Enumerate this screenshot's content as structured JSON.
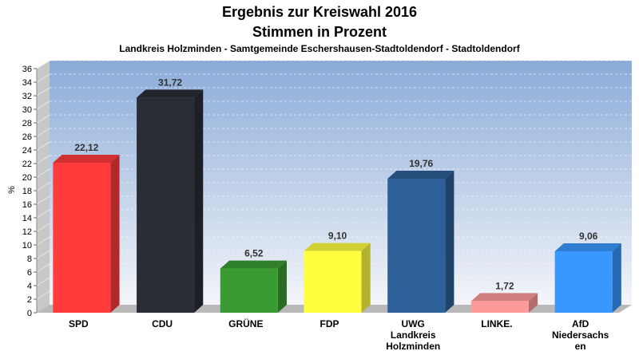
{
  "chart_data": {
    "type": "bar",
    "title": "Ergebnis zur Kreiswahl 2016",
    "title2": "Stimmen in Prozent",
    "subtitle": "Landkreis Holzminden - Samtgemeinde Eschershausen-Stadtoldendorf - Stadtoldendorf",
    "ylabel": "%",
    "xlabel": "",
    "ylim": [
      0,
      36
    ],
    "ytick_step": 2,
    "grid": true,
    "legend": "none",
    "value_labels": [
      "22,12",
      "31,72",
      "6,52",
      "9,10",
      "19,76",
      "1,72",
      "9,06"
    ],
    "categories": [
      [
        "SPD"
      ],
      [
        "CDU"
      ],
      [
        "GRÜNE"
      ],
      [
        "FDP"
      ],
      [
        "UWG",
        "Landkreis",
        "Holzminden"
      ],
      [
        "LINKE."
      ],
      [
        "AfD",
        "Niedersachs",
        "en"
      ]
    ],
    "values": [
      22.12,
      31.72,
      6.52,
      9.1,
      19.76,
      1.72,
      9.06
    ],
    "colors": [
      "#ff3b3b",
      "#2a2d36",
      "#3a9b33",
      "#ffff40",
      "#2d5f99",
      "#ff9a9a",
      "#3898ff"
    ]
  }
}
